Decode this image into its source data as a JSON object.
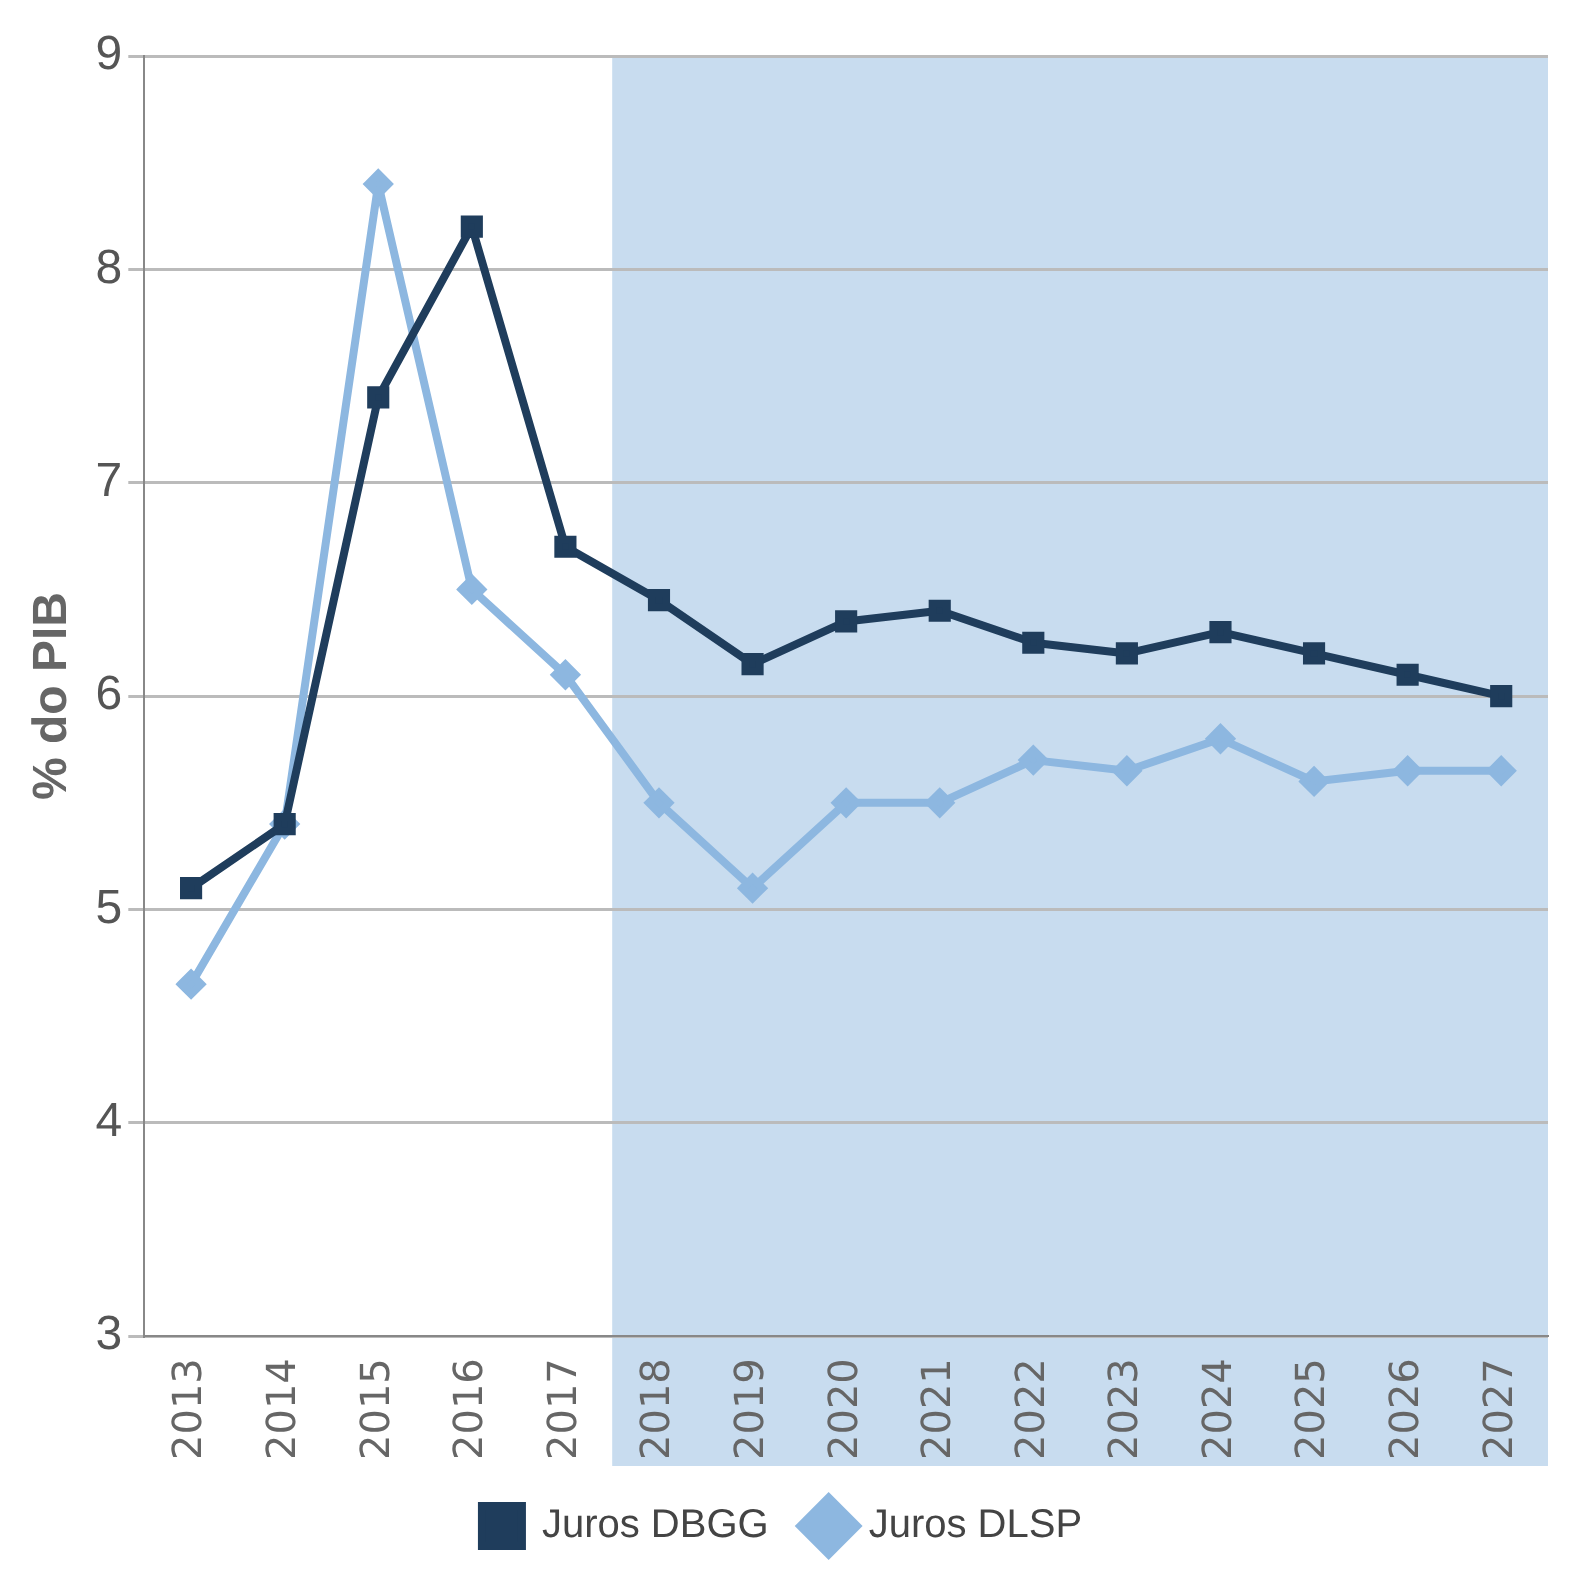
{
  "chart_data": {
    "type": "line",
    "ylabel": "% do PIB",
    "categories": [
      "2013",
      "2014",
      "2015",
      "2016",
      "2017",
      "2018",
      "2019",
      "2020",
      "2021",
      "2022",
      "2023",
      "2024",
      "2025",
      "2026",
      "2027"
    ],
    "series": [
      {
        "name": "Juros DBGG",
        "color": "#1f3d5c",
        "marker": "square",
        "values": [
          5.1,
          5.4,
          7.4,
          8.2,
          6.7,
          6.45,
          6.15,
          6.35,
          6.4,
          6.25,
          6.2,
          6.3,
          6.2,
          6.1,
          6.0
        ]
      },
      {
        "name": "Juros DLSP",
        "color": "#8db7e0",
        "marker": "diamond",
        "values": [
          4.65,
          5.4,
          8.4,
          6.5,
          6.1,
          5.5,
          5.1,
          5.5,
          5.5,
          5.7,
          5.65,
          5.8,
          5.6,
          5.65,
          5.65
        ]
      }
    ],
    "ylim": [
      3,
      9
    ],
    "yticks": [
      3,
      4,
      5,
      6,
      7,
      8,
      9
    ],
    "grid": "y",
    "legend": "bottom",
    "line_style": "solid",
    "bands": [
      {
        "axis": "x",
        "from": "2018",
        "to": "2027",
        "color": "#c8dcef"
      }
    ]
  }
}
